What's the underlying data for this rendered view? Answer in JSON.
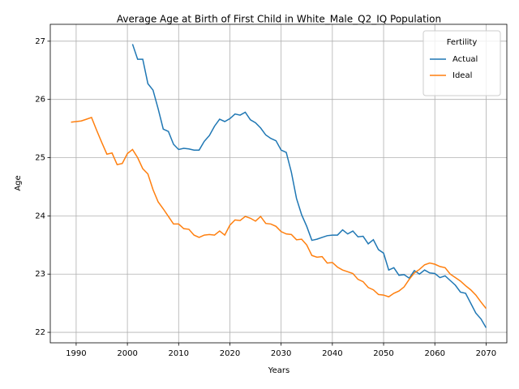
{
  "chart_data": {
    "type": "line",
    "title": "Average Age at Birth of First Child in White_Male_Q2_IQ Population",
    "x_label": "Years",
    "y_label": "Age",
    "x": [
      1989,
      1990,
      1991,
      1992,
      1993,
      1994,
      1995,
      1996,
      1997,
      1998,
      1999,
      2000,
      2001,
      2002,
      2003,
      2004,
      2005,
      2006,
      2007,
      2008,
      2009,
      2010,
      2011,
      2012,
      2013,
      2014,
      2015,
      2016,
      2017,
      2018,
      2019,
      2020,
      2021,
      2022,
      2023,
      2024,
      2025,
      2026,
      2027,
      2028,
      2029,
      2030,
      2031,
      2032,
      2033,
      2034,
      2035,
      2036,
      2037,
      2038,
      2039,
      2040,
      2041,
      2042,
      2043,
      2044,
      2045,
      2046,
      2047,
      2048,
      2049,
      2050,
      2051,
      2052,
      2053,
      2054,
      2055,
      2056,
      2057,
      2058,
      2059,
      2060,
      2061,
      2062,
      2063,
      2064,
      2065,
      2066,
      2067,
      2068,
      2069,
      2070
    ],
    "series": [
      {
        "name": "Actual",
        "color": "#1f77b4",
        "values": [
          null,
          null,
          null,
          null,
          null,
          null,
          null,
          null,
          null,
          null,
          null,
          null,
          26.95,
          26.69,
          26.69,
          26.27,
          26.16,
          25.84,
          25.49,
          25.45,
          25.23,
          25.14,
          25.16,
          25.15,
          25.13,
          25.13,
          25.28,
          25.38,
          25.54,
          25.66,
          25.62,
          25.67,
          25.75,
          25.73,
          25.78,
          25.65,
          25.6,
          25.51,
          25.39,
          25.33,
          25.29,
          25.13,
          25.09,
          24.75,
          24.3,
          24.02,
          23.82,
          23.58,
          23.6,
          23.63,
          23.66,
          23.67,
          23.67,
          23.76,
          23.69,
          23.74,
          23.64,
          23.65,
          23.52,
          23.59,
          23.42,
          23.36,
          23.07,
          23.11,
          22.98,
          22.99,
          22.93,
          23.06,
          23.0,
          23.07,
          23.02,
          23.01,
          22.94,
          22.97,
          22.89,
          22.81,
          22.69,
          22.67,
          22.5,
          22.33,
          22.23,
          22.08
        ]
      },
      {
        "name": "Ideal",
        "color": "#ff7f0e",
        "values": [
          25.61,
          25.62,
          25.63,
          25.66,
          25.69,
          25.47,
          25.26,
          25.06,
          25.08,
          24.88,
          24.9,
          25.07,
          25.14,
          25.0,
          24.81,
          24.72,
          24.45,
          24.24,
          24.12,
          23.99,
          23.86,
          23.86,
          23.78,
          23.77,
          23.67,
          23.63,
          23.67,
          23.68,
          23.67,
          23.74,
          23.67,
          23.84,
          23.93,
          23.92,
          23.99,
          23.96,
          23.91,
          23.99,
          23.87,
          23.86,
          23.82,
          23.73,
          23.69,
          23.68,
          23.59,
          23.6,
          23.5,
          23.32,
          23.29,
          23.3,
          23.19,
          23.2,
          23.12,
          23.07,
          23.04,
          23.01,
          22.91,
          22.87,
          22.77,
          22.73,
          22.65,
          22.64,
          22.61,
          22.67,
          22.71,
          22.78,
          22.91,
          23.02,
          23.08,
          23.16,
          23.19,
          23.17,
          23.13,
          23.11,
          23.0,
          22.94,
          22.88,
          22.8,
          22.73,
          22.64,
          22.52,
          22.41
        ]
      }
    ],
    "xlim": [
      1984.95,
      2074.05
    ],
    "ylim": [
      21.82,
      27.29
    ],
    "xticks": [
      1990,
      2000,
      2010,
      2020,
      2030,
      2040,
      2050,
      2060,
      2070
    ],
    "yticks": [
      22,
      23,
      24,
      25,
      26,
      27
    ],
    "grid": true,
    "legend_title": "Fertility",
    "legend_loc": "upper right"
  }
}
